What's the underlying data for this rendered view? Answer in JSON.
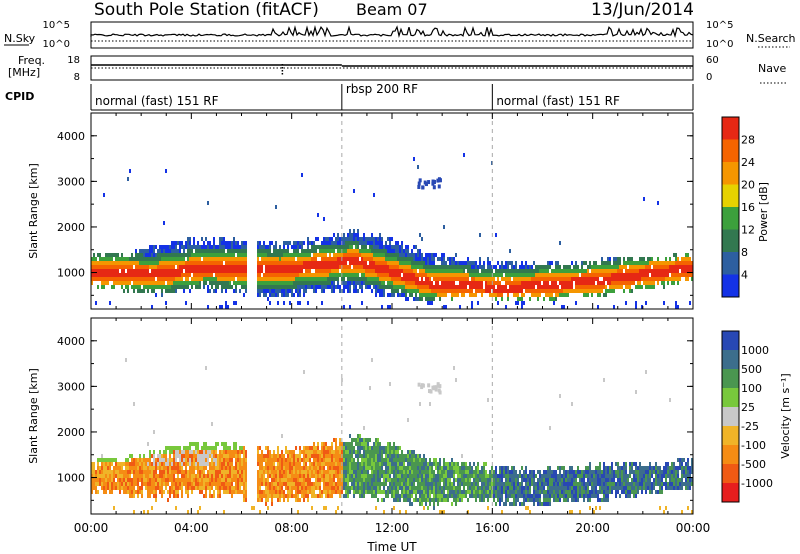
{
  "header": {
    "station": "South Pole Station (fitACF)",
    "beam": "Beam 07",
    "date": "13/Jun/2014"
  },
  "top_panels": {
    "nsky_label": "N.Sky",
    "nsearch_label": "N.Search",
    "noise_ticks": [
      "10^5",
      "10^0"
    ],
    "freq_label_1": "Freq.",
    "freq_label_2": "[MHz]",
    "freq_ticks": [
      "18",
      "8"
    ],
    "nave_label": "Nave",
    "nave_ticks": [
      "60",
      "0"
    ],
    "cpid_label": "CPID",
    "cpid_segments": [
      {
        "label": "normal (fast) 151 RF",
        "start_hour": 0,
        "end_hour": 10
      },
      {
        "label": "rbsp 200 RF",
        "start_hour": 10,
        "end_hour": 16
      },
      {
        "label": "normal (fast) 151 RF",
        "start_hour": 16,
        "end_hour": 24
      }
    ]
  },
  "chart_data": [
    {
      "type": "heatmap",
      "name": "power",
      "ylabel": "Slant Range [km]",
      "yticks": [
        "1000",
        "2000",
        "3000",
        "4000"
      ],
      "ylim": [
        200,
        4500
      ],
      "colorbar_label": "Power [dB]",
      "colorbar_ticks": [
        "4",
        "8",
        "12",
        "16",
        "20",
        "24",
        "28"
      ],
      "colorbar_colors": [
        "#1432e6",
        "#2d5fa0",
        "#327850",
        "#3ca03c",
        "#e6d200",
        "#f59600",
        "#f56400",
        "#e62814"
      ],
      "band_bounds_km": [
        {
          "hour": 0.0,
          "lo": 700,
          "hi": 1500
        },
        {
          "hour": 1.0,
          "lo": 650,
          "hi": 1500
        },
        {
          "hour": 2.0,
          "lo": 600,
          "hi": 1600
        },
        {
          "hour": 3.0,
          "lo": 500,
          "hi": 1700
        },
        {
          "hour": 4.0,
          "lo": 650,
          "hi": 1800
        },
        {
          "hour": 5.5,
          "lo": 600,
          "hi": 1800
        },
        {
          "hour": 7.0,
          "lo": 450,
          "hi": 1700
        },
        {
          "hour": 9.0,
          "lo": 550,
          "hi": 1800
        },
        {
          "hour": 10.5,
          "lo": 600,
          "hi": 2000
        },
        {
          "hour": 12.0,
          "lo": 500,
          "hi": 1800
        },
        {
          "hour": 13.5,
          "lo": 350,
          "hi": 1500
        },
        {
          "hour": 15.0,
          "lo": 500,
          "hi": 1400
        },
        {
          "hour": 16.5,
          "lo": 450,
          "hi": 1300
        },
        {
          "hour": 18.0,
          "lo": 450,
          "hi": 1250
        },
        {
          "hour": 20.0,
          "lo": 500,
          "hi": 1350
        },
        {
          "hour": 22.0,
          "lo": 650,
          "hi": 1400
        },
        {
          "hour": 24.0,
          "lo": 800,
          "hi": 1450
        }
      ],
      "core_km": [
        {
          "hour": 0.0,
          "r": 1050
        },
        {
          "hour": 2.5,
          "r": 1000
        },
        {
          "hour": 4.5,
          "r": 1150
        },
        {
          "hour": 7.5,
          "r": 1100
        },
        {
          "hour": 10.5,
          "r": 1300
        },
        {
          "hour": 13.5,
          "r": 800
        },
        {
          "hour": 16.5,
          "r": 700
        },
        {
          "hour": 20.0,
          "r": 850
        },
        {
          "hour": 24.0,
          "r": 1150
        }
      ]
    },
    {
      "type": "heatmap",
      "name": "velocity",
      "ylabel": "Slant Range [km]",
      "yticks": [
        "1000",
        "2000",
        "3000",
        "4000"
      ],
      "ylim": [
        200,
        4500
      ],
      "xlabel": "Time UT",
      "xticks": [
        "00:00",
        "04:00",
        "08:00",
        "12:00",
        "16:00",
        "20:00",
        "00:00"
      ],
      "xlim_hours": [
        0,
        24
      ],
      "colorbar_label": "Velocity [m s⁻¹]",
      "colorbar_ticks": [
        "1000",
        "500",
        "100",
        "25",
        "-25",
        "-100",
        "-500",
        "-1000"
      ],
      "colorbar_colors": [
        "#2848b4",
        "#3c6e8c",
        "#4a9650",
        "#78c83c",
        "#c8c8c8",
        "#f0b428",
        "#f58c14",
        "#f05a14",
        "#e61e1e"
      ]
    }
  ]
}
